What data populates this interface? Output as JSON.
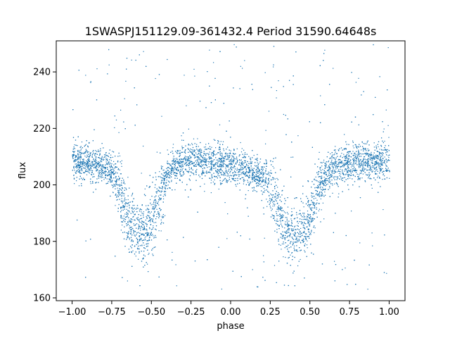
{
  "chart_data": {
    "type": "scatter",
    "title": "1SWASPJ151129.09-361432.4 Period 31590.64648s",
    "xlabel": "phase",
    "ylabel": "flux",
    "xlim": [
      -1.1,
      1.1
    ],
    "ylim": [
      159,
      251
    ],
    "xticks": [
      -1.0,
      -0.75,
      -0.5,
      -0.25,
      0.0,
      0.25,
      0.5,
      0.75,
      1.0
    ],
    "xtick_labels": [
      "−1.00",
      "−0.75",
      "−0.50",
      "−0.25",
      "0.00",
      "0.25",
      "0.50",
      "0.75",
      "1.00"
    ],
    "yticks": [
      160,
      180,
      200,
      220,
      240
    ],
    "ytick_labels": [
      "160",
      "180",
      "200",
      "220",
      "240"
    ],
    "grid": false,
    "marker_color": "#1f77b4",
    "series": [
      {
        "phase": [
          -1.0,
          -0.9,
          -0.8,
          -0.75,
          -0.7,
          -0.65,
          -0.6,
          -0.55,
          -0.5,
          -0.45,
          -0.4,
          -0.35,
          -0.3,
          -0.25,
          -0.2,
          -0.1,
          0.0,
          0.1,
          0.2,
          0.25,
          0.3,
          0.35,
          0.4,
          0.45,
          0.5,
          0.55,
          0.6,
          0.65,
          0.7,
          0.75,
          0.8,
          0.9,
          1.0
        ],
        "flux": [
          208,
          208,
          207,
          205,
          198,
          188,
          184,
          183,
          186,
          196,
          204,
          207,
          208,
          209,
          209,
          208,
          207,
          205,
          203,
          199,
          192,
          185,
          183,
          184,
          188,
          198,
          204,
          206,
          207,
          208,
          208,
          208,
          208
        ]
      }
    ]
  }
}
